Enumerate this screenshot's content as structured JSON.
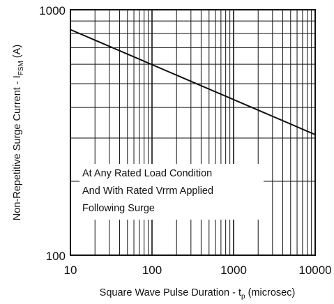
{
  "chart_data": {
    "type": "line",
    "title": "",
    "xlabel": "Square Wave Pulse Duration - t",
    "xlabel_subscript": "p",
    "xlabel_suffix": " (microsec)",
    "ylabel": "Non-Repetitive Surge Current - I",
    "ylabel_subscript": "FSM",
    "ylabel_suffix": " (A)",
    "x_scale": "log",
    "y_scale": "log",
    "xlim": [
      10,
      10000
    ],
    "ylim": [
      100,
      1000
    ],
    "x_tick_labels": [
      "10",
      "100",
      "1000",
      "10000"
    ],
    "y_tick_labels": [
      "100",
      "1000"
    ],
    "grid": true,
    "annotation": [
      "At Any Rated Load Condition",
      "And With Rated Vrrm Applied",
      "Following Surge"
    ],
    "series": [
      {
        "x": [
          10,
          10000
        ],
        "y": [
          830,
          310
        ]
      }
    ],
    "colors": {
      "line": "#111111",
      "grid": "#111111",
      "background": "#ffffff"
    }
  }
}
